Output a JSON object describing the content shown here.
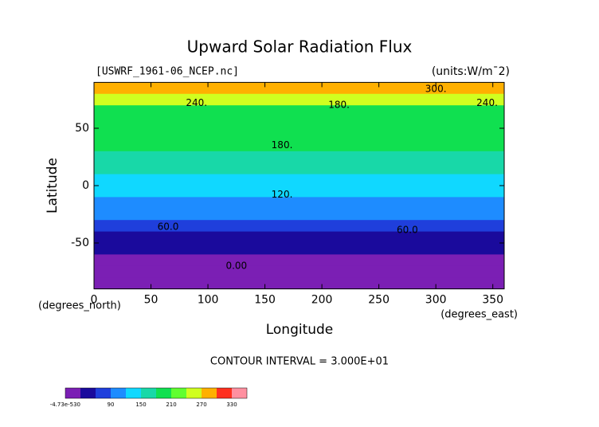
{
  "chart_data": {
    "type": "contour",
    "title": "Upward Solar Radiation Flux",
    "subtitle": "[USWRF_1961-06_NCEP.nc]",
    "units": "(units:W/m¯2)",
    "x_label": "Longitude",
    "y_label": "Latitude",
    "x_unit": "(degrees_east)",
    "y_unit": "(degrees_north)",
    "footer": "CONTOUR INTERVAL = 3.000E+01",
    "xlim": [
      0,
      360
    ],
    "xticks": [
      0,
      50,
      100,
      150,
      200,
      250,
      300,
      350
    ],
    "ylim": [
      -90,
      90
    ],
    "yticks": [
      -50,
      0,
      50
    ],
    "lat": [
      85,
      75,
      65,
      55,
      45,
      35,
      25,
      15,
      5,
      -5,
      -15,
      -25,
      -35,
      -45,
      -55,
      -65,
      -75,
      -85
    ],
    "values": [
      270,
      240,
      195,
      180,
      185,
      190,
      175,
      165,
      145,
      120,
      105,
      100,
      75,
      45,
      35,
      20,
      5,
      0
    ],
    "levels": [
      0,
      30,
      60,
      90,
      120,
      150,
      180,
      210,
      240,
      270,
      300,
      330
    ],
    "colors": [
      "#7b1fb4",
      "#1a0a9c",
      "#1f3fdc",
      "#1e8cff",
      "#10d8ff",
      "#18d8a8",
      "#10e050",
      "#60ff30",
      "#d0ff20",
      "#ffb000",
      "#ff3020",
      "#ff90a0"
    ],
    "annotations": [
      {
        "lon": 300,
        "lat": 84,
        "text": "300."
      },
      {
        "lon": 90,
        "lat": 72,
        "text": "240."
      },
      {
        "lon": 345,
        "lat": 72,
        "text": "240."
      },
      {
        "lon": 215,
        "lat": 70,
        "text": "180."
      },
      {
        "lon": 165,
        "lat": 35,
        "text": "180."
      },
      {
        "lon": 165,
        "lat": -8,
        "text": "120."
      },
      {
        "lon": 65,
        "lat": -36,
        "text": "60.0"
      },
      {
        "lon": 275,
        "lat": -39,
        "text": "60.0"
      },
      {
        "lon": 125,
        "lat": -70,
        "text": "0.00"
      }
    ],
    "colorbar_ticks": [
      {
        "value": 30,
        "label": "-4.73e-530"
      },
      90,
      150,
      210,
      270,
      330
    ],
    "colorbar_lim": [
      0,
      360
    ]
  }
}
